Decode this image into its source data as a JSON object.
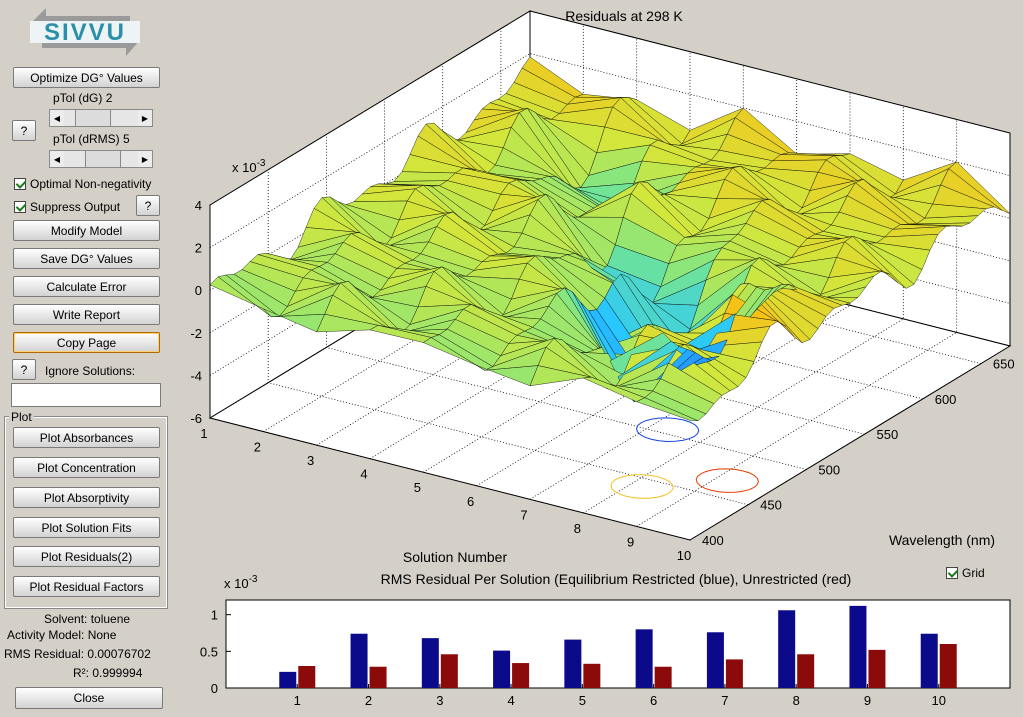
{
  "logo": {
    "text": "SIVVU"
  },
  "controls": {
    "optimize_label": "Optimize DG° Values",
    "ptol_dg_label": "pTol (dG)",
    "ptol_dg_value": "2",
    "ptol_drms_label": "pTol (dRMS)",
    "ptol_drms_value": "5",
    "ptol_dg_fraction": 0.25,
    "ptol_drms_fraction": 0.5,
    "help_label": "?",
    "optimal_nonneg_label": "Optimal Non-negativity",
    "optimal_nonneg_checked": true,
    "suppress_output_label": "Suppress Output",
    "suppress_output_checked": true,
    "modify_model_label": "Modify Model",
    "save_dg_label": "Save DG° Values",
    "calculate_error_label": "Calculate Error",
    "write_report_label": "Write Report",
    "copy_page_label": "Copy Page",
    "ignore_solutions_label": "Ignore Solutions:",
    "ignore_solutions_value": ""
  },
  "plot_panel": {
    "title": "Plot",
    "buttons": [
      "Plot Absorbances",
      "Plot Concentration",
      "Plot Absorptivity",
      "Plot Solution Fits",
      "Plot Residuals(2)",
      "Plot Residual Factors"
    ]
  },
  "info": {
    "solvent": "Solvent: toluene",
    "activity_model": "Activity Model: None",
    "rms_residual": "RMS Residual: 0.00076702",
    "r2": "R²: 0.999994",
    "close_label": "Close"
  },
  "surface_plot": {
    "title": "Residuals at 298 K",
    "xlabel": "Solution Number",
    "ylabel": "Wavelength (nm)",
    "zscale": "x 10",
    "zscale_exp": "-3",
    "zticks": [
      "4",
      "2",
      "0",
      "-2",
      "-4",
      "-6"
    ],
    "xticks": [
      "1",
      "2",
      "3",
      "4",
      "5",
      "6",
      "7",
      "8",
      "9",
      "10"
    ],
    "yticks": [
      "650",
      "600",
      "550",
      "500",
      "450",
      "400"
    ]
  },
  "grid_toggle": {
    "label": "Grid",
    "checked": true
  },
  "chart_data": {
    "type": "bar",
    "title": "RMS Residual Per Solution (Equilibrium Restricted (blue), Unrestricted (red)",
    "xlabel": "",
    "ylabel": "",
    "yscale": "x 10",
    "yscale_exp": "-3",
    "categories": [
      "1",
      "2",
      "3",
      "4",
      "5",
      "6",
      "7",
      "8",
      "9",
      "10"
    ],
    "ylim": [
      0,
      1.2
    ],
    "yticks": [
      "1",
      "0.5",
      "0"
    ],
    "series": [
      {
        "name": "Equilibrium Restricted",
        "color": "#0a0a8a",
        "values": [
          0.22,
          0.74,
          0.68,
          0.51,
          0.66,
          0.8,
          0.76,
          1.06,
          1.12,
          0.74
        ]
      },
      {
        "name": "Unrestricted",
        "color": "#8b0b0b",
        "values": [
          0.3,
          0.29,
          0.46,
          0.34,
          0.33,
          0.29,
          0.39,
          0.46,
          0.52,
          0.6
        ]
      }
    ]
  }
}
